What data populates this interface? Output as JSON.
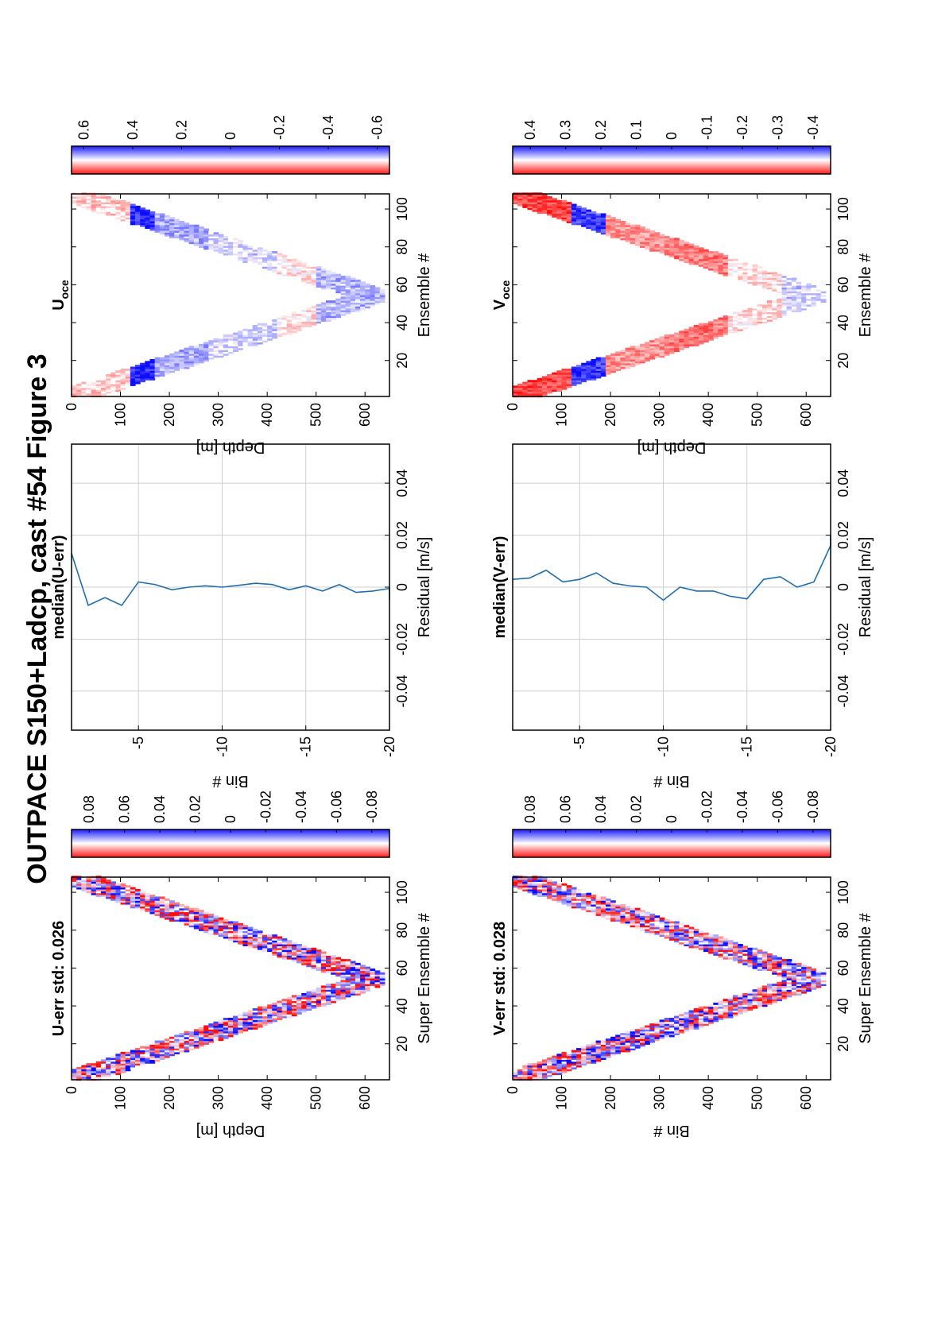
{
  "figure_title": "OUTPACE S150+Ladcp, cast #54  Figure 3",
  "chart_data": [
    {
      "id": "uerr",
      "type": "heatmap",
      "title": "U-err std: 0.026",
      "xlabel": "Super Ensemble #",
      "ylabel": "Depth [m]",
      "xlim": [
        1,
        108
      ],
      "ylim": [
        0,
        650
      ],
      "xticks": [
        "20",
        "40",
        "60",
        "80",
        "100"
      ],
      "yticks": [
        "0",
        "100",
        "200",
        "300",
        "400",
        "500",
        "600"
      ],
      "profile": {
        "top": 0,
        "bottom": 620,
        "turn_ensemble": 54,
        "band_width_m": 110
      },
      "colorscale": "red-white-blue",
      "colorbar": {
        "range": [
          -0.09,
          0.09
        ],
        "ticks": [
          "0.08",
          "0.06",
          "0.04",
          "0.02",
          "0",
          "-0.02",
          "-0.04",
          "-0.06",
          "-0.08"
        ]
      }
    },
    {
      "id": "verr",
      "type": "heatmap",
      "title": "V-err std: 0.028",
      "xlabel": "Super Ensemble #",
      "ylabel": "Bin #",
      "xlim": [
        1,
        108
      ],
      "ylim": [
        0,
        650
      ],
      "xticks": [
        "20",
        "40",
        "60",
        "80",
        "100"
      ],
      "yticks": [
        "0",
        "100",
        "200",
        "300",
        "400",
        "500",
        "600"
      ],
      "profile": {
        "top": 0,
        "bottom": 620,
        "turn_ensemble": 54,
        "band_width_m": 110
      },
      "colorscale": "red-white-blue",
      "colorbar": {
        "range": [
          -0.09,
          0.09
        ],
        "ticks": [
          "0.08",
          "0.06",
          "0.04",
          "0.02",
          "0",
          "-0.02",
          "-0.04",
          "-0.06",
          "-0.08"
        ]
      }
    },
    {
      "id": "umed",
      "type": "line",
      "title": "median(U-err)",
      "xlabel": "Residual [m/s]",
      "ylabel": "Bin #",
      "xlim": [
        -0.055,
        0.055
      ],
      "ylim": [
        -1,
        -20
      ],
      "xticks": [
        "-0.04",
        "-0.02",
        "0",
        "0.02",
        "0.04"
      ],
      "yticks": [
        "-5",
        "-10",
        "-15",
        "-20"
      ],
      "grid": true,
      "series": [
        {
          "x": [
            0.013,
            -0.007,
            -0.004,
            -0.007,
            0.002,
            0.001,
            -0.001,
            0.0,
            0.0005,
            0.0,
            0.0007,
            0.0015,
            0.001,
            -0.001,
            0.0005,
            -0.0015,
            0.001,
            -0.002,
            -0.0015,
            -0.0005,
            -0.005
          ],
          "y": [
            -1,
            -2,
            -3,
            -4,
            -5,
            -6,
            -7,
            -8,
            -9,
            -10,
            -11,
            -12,
            -13,
            -14,
            -15,
            -16,
            -17,
            -18,
            -19,
            -20,
            -21
          ]
        }
      ]
    },
    {
      "id": "vmed",
      "type": "line",
      "title": "median(V-err)",
      "xlabel": "Residual [m/s]",
      "ylabel": "Bin #",
      "xlim": [
        -0.055,
        0.055
      ],
      "ylim": [
        -1,
        -20
      ],
      "xticks": [
        "-0.04",
        "-0.02",
        "0",
        "0.02",
        "0.04"
      ],
      "yticks": [
        "-5",
        "-10",
        "-15",
        "-20"
      ],
      "grid": true,
      "series": [
        {
          "x": [
            0.003,
            0.0035,
            0.0065,
            0.002,
            0.003,
            0.0055,
            0.0015,
            0.0005,
            0.0,
            -0.005,
            0.0,
            -0.0015,
            -0.0015,
            -0.0035,
            -0.0045,
            0.003,
            0.004,
            0.0,
            0.002,
            0.016,
            0.02
          ],
          "y": [
            -1,
            -2,
            -3,
            -4,
            -5,
            -6,
            -7,
            -8,
            -9,
            -10,
            -11,
            -12,
            -13,
            -14,
            -15,
            -16,
            -17,
            -18,
            -19,
            -20,
            -21
          ]
        }
      ]
    },
    {
      "id": "uoce",
      "type": "heatmap",
      "title": "U",
      "title_sub": "oce",
      "xlabel": "Ensemble #",
      "ylabel": "Depth [m]",
      "xlim": [
        1,
        108
      ],
      "ylim": [
        0,
        650
      ],
      "xticks": [
        "20",
        "40",
        "60",
        "80",
        "100"
      ],
      "yticks": [
        "0",
        "100",
        "200",
        "300",
        "400",
        "500",
        "600"
      ],
      "profile": {
        "top": 0,
        "bottom": 620,
        "turn_ensemble": 54,
        "band_width_m": 110
      },
      "colorscale": "red-white-blue",
      "colorbar": {
        "range": [
          -0.65,
          0.65
        ],
        "ticks": [
          "0.6",
          "0.4",
          "0.2",
          "0",
          "-0.2",
          "-0.4",
          "-0.6"
        ]
      }
    },
    {
      "id": "voce",
      "type": "heatmap",
      "title": "V",
      "title_sub": "oce",
      "xlabel": "Ensemble #",
      "ylabel": "Depth [m]",
      "xlim": [
        1,
        108
      ],
      "ylim": [
        0,
        650
      ],
      "xticks": [
        "20",
        "40",
        "60",
        "80",
        "100"
      ],
      "yticks": [
        "0",
        "100",
        "200",
        "300",
        "400",
        "500",
        "600"
      ],
      "profile": {
        "top": 0,
        "bottom": 620,
        "turn_ensemble": 54,
        "band_width_m": 110
      },
      "colorscale": "red-white-blue",
      "colorbar": {
        "range": [
          -0.45,
          0.45
        ],
        "ticks": [
          "0.4",
          "0.3",
          "0.2",
          "0.1",
          "0",
          "-0.1",
          "-0.2",
          "-0.3",
          "-0.4"
        ]
      }
    }
  ]
}
